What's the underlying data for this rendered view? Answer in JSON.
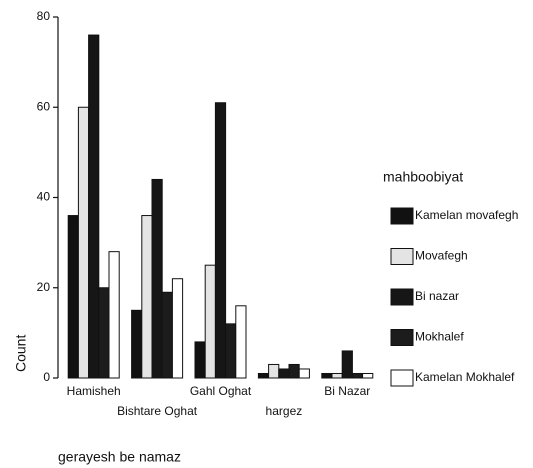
{
  "chart_data": {
    "type": "bar",
    "categories": [
      "Hamisheh",
      "Bishtare Oghat",
      "Gahl Oghat",
      "hargez",
      "Bi Nazar"
    ],
    "series": [
      {
        "name": "Kamelan movafegh",
        "color": "#111111",
        "values": [
          36,
          15,
          8,
          1,
          1
        ]
      },
      {
        "name": "Movafegh",
        "color": "#e4e4e4",
        "values": [
          60,
          36,
          25,
          3,
          1
        ]
      },
      {
        "name": "Bi nazar",
        "color": "#161616",
        "values": [
          76,
          44,
          61,
          2,
          6
        ]
      },
      {
        "name": "Mokhalef",
        "color": "#1c1c1c",
        "values": [
          20,
          19,
          12,
          3,
          1
        ]
      },
      {
        "name": "Kamelan Mokhalef",
        "color": "#ffffff",
        "values": [
          28,
          22,
          16,
          2,
          1
        ]
      }
    ],
    "ylim": [
      0,
      80
    ],
    "yticks": [
      0,
      20,
      40,
      60,
      80
    ],
    "xlabel": "gerayesh be namaz",
    "ylabel": "Count",
    "legend_title": "mahboobiyat"
  }
}
